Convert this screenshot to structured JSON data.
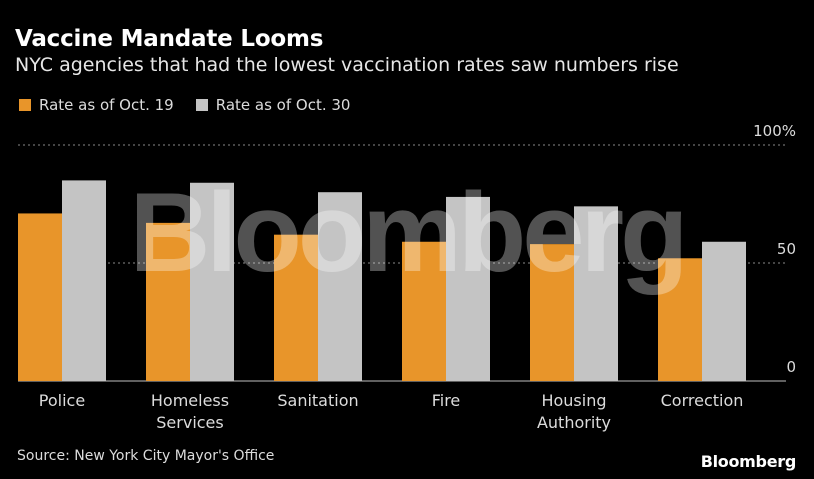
{
  "chart_data": {
    "type": "bar",
    "title": "Vaccine Mandate Looms",
    "subtitle": "NYC agencies that had the lowest vaccination rates saw numbers rise",
    "categories": [
      [
        "Police"
      ],
      [
        "Homeless",
        "Services"
      ],
      [
        "Sanitation"
      ],
      [
        "Fire"
      ],
      [
        "Housing",
        "Authority"
      ],
      [
        "Correction"
      ]
    ],
    "series": [
      {
        "name": "Rate as of Oct. 19",
        "color": "#e8952a",
        "values": [
          71,
          67,
          62,
          59,
          58,
          52
        ]
      },
      {
        "name": "Rate as of Oct. 30",
        "color": "#c4c4c4",
        "values": [
          85,
          84,
          80,
          78,
          74,
          59
        ]
      }
    ],
    "ylim": [
      0,
      100
    ],
    "yticks": [
      {
        "value": 100,
        "label": "100%"
      },
      {
        "value": 50,
        "label": "50"
      },
      {
        "value": 0,
        "label": "0"
      }
    ],
    "grid": true,
    "legend_position": "top-left",
    "source": "Source: New York City Mayor's Office"
  },
  "watermark": "Bloomberg",
  "branding": "Bloomberg"
}
